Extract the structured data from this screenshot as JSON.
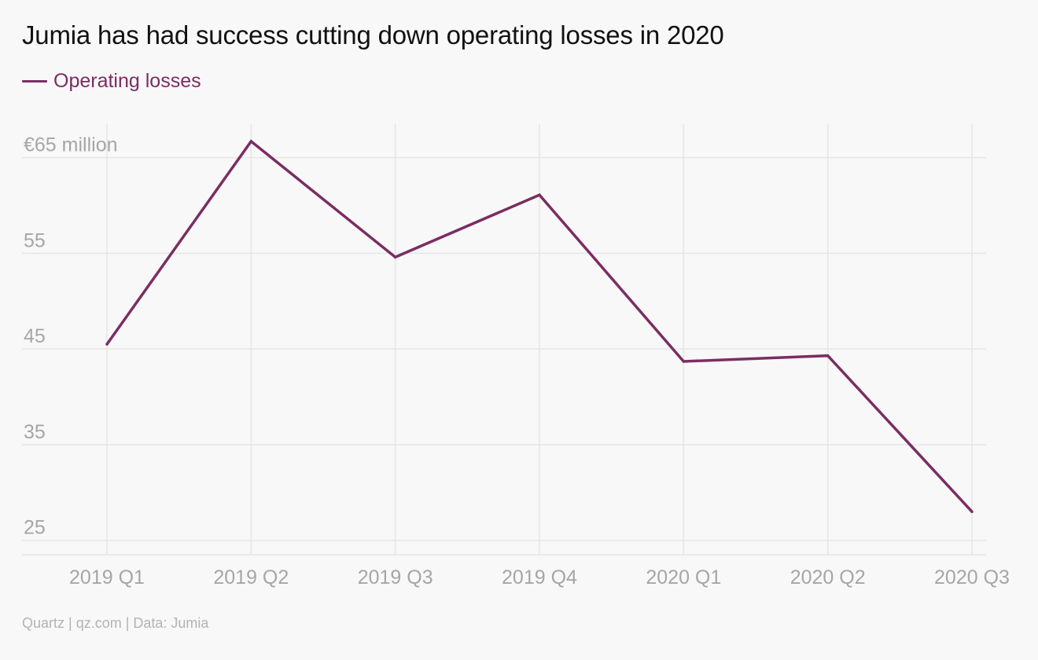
{
  "title": "Jumia has had success cutting down operating losses in 2020",
  "footer": "Quartz | qz.com | Data: Jumia",
  "colors": {
    "series": "#7b2d62",
    "grid": "#e6e6e6",
    "tick_text": "#a6a6a6",
    "background": "#f8f8f8"
  },
  "chart_data": {
    "type": "line",
    "categories": [
      "2019 Q1",
      "2019 Q2",
      "2019 Q3",
      "2019 Q4",
      "2020 Q1",
      "2020 Q2",
      "2020 Q3"
    ],
    "series": [
      {
        "name": "Operating losses",
        "values": [
          45.5,
          66.7,
          54.6,
          61.1,
          43.7,
          44.3,
          28.0
        ]
      }
    ],
    "y_ticks": [
      25,
      35,
      45,
      55,
      65
    ],
    "y_tick_labels": [
      "25",
      "35",
      "45",
      "55",
      "€65 million"
    ],
    "ylim": [
      23.5,
      68.5
    ],
    "xlabel": "",
    "ylabel": "",
    "grid": true,
    "legend_position": "top-left"
  }
}
